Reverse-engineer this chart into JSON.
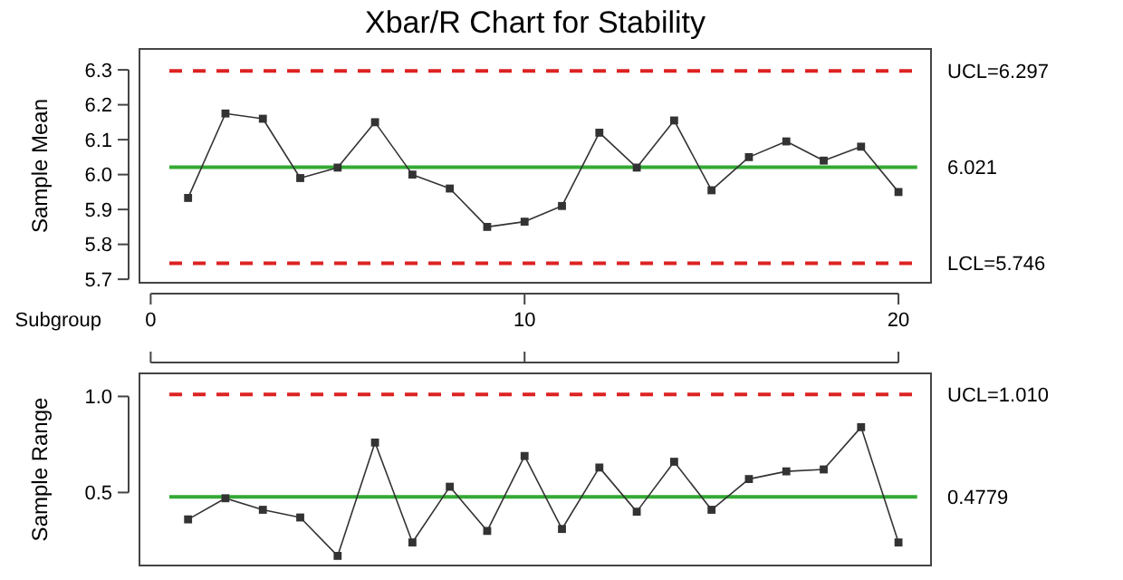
{
  "chart_data": [
    {
      "type": "line",
      "title": "Xbar/R Chart for Stability",
      "xlabel": "Subgroup",
      "ylabel": "Sample Mean",
      "x": [
        1,
        2,
        3,
        4,
        5,
        6,
        7,
        8,
        9,
        10,
        11,
        12,
        13,
        14,
        15,
        16,
        17,
        18,
        19,
        20
      ],
      "series": [
        {
          "color": "#333333",
          "values": [
            5.933,
            6.175,
            6.16,
            5.99,
            6.02,
            6.15,
            6.0,
            5.96,
            5.85,
            5.865,
            5.91,
            6.12,
            6.02,
            6.155,
            5.955,
            6.05,
            6.095,
            6.04,
            6.08,
            5.95
          ]
        }
      ],
      "xlim": [
        -0.3,
        20.87
      ],
      "xticks": [
        0,
        10,
        20
      ],
      "ylim": [
        5.69,
        6.36
      ],
      "yticks": [
        {
          "value": 5.7,
          "label": "5.7"
        },
        {
          "value": 5.8,
          "label": "5.8"
        },
        {
          "value": 5.9,
          "label": "5.9"
        },
        {
          "value": 6.0,
          "label": "6.0"
        },
        {
          "value": 6.1,
          "label": "6.1"
        },
        {
          "value": 6.2,
          "label": "6.2"
        },
        {
          "value": 6.3,
          "label": "6.3"
        }
      ],
      "ref_lines": [
        {
          "axis": "y",
          "value": 6.297,
          "label": "UCL=6.297",
          "color": "#dd2222",
          "line_style": "dashed"
        },
        {
          "axis": "y",
          "value": 6.021,
          "label": "6.021",
          "color": "#33aa33",
          "line_style": "solid"
        },
        {
          "axis": "y",
          "value": 5.746,
          "label": "LCL=5.746",
          "color": "#dd2222",
          "line_style": "dashed"
        }
      ],
      "marker": "square",
      "line_style": "solid"
    },
    {
      "type": "line",
      "ylabel": "Sample Range",
      "x": [
        1,
        2,
        3,
        4,
        5,
        6,
        7,
        8,
        9,
        10,
        11,
        12,
        13,
        14,
        15,
        16,
        17,
        18,
        19,
        20
      ],
      "series": [
        {
          "color": "#333333",
          "values": [
            0.36,
            0.47,
            0.41,
            0.37,
            0.17,
            0.76,
            0.24,
            0.53,
            0.3,
            0.69,
            0.31,
            0.63,
            0.4,
            0.66,
            0.41,
            0.57,
            0.61,
            0.62,
            0.84,
            0.24
          ]
        }
      ],
      "xlim": [
        -0.3,
        20.87
      ],
      "xticks": [
        {
          "value": 0,
          "label": null
        },
        {
          "value": 10,
          "label": null
        },
        {
          "value": 20,
          "label": null
        }
      ],
      "ylim": [
        0.12,
        1.12
      ],
      "yticks": [
        {
          "value": 0.5,
          "label": "0.5"
        },
        {
          "value": 1.0,
          "label": "1.0"
        }
      ],
      "ref_lines": [
        {
          "axis": "y",
          "value": 1.01,
          "label": "UCL=1.010",
          "color": "#dd2222",
          "line_style": "dashed"
        },
        {
          "axis": "y",
          "value": 0.4779,
          "label": "0.4779",
          "color": "#33aa33",
          "line_style": "solid"
        }
      ],
      "tick_labels": "y",
      "marker": "square",
      "line_style": "solid"
    }
  ]
}
